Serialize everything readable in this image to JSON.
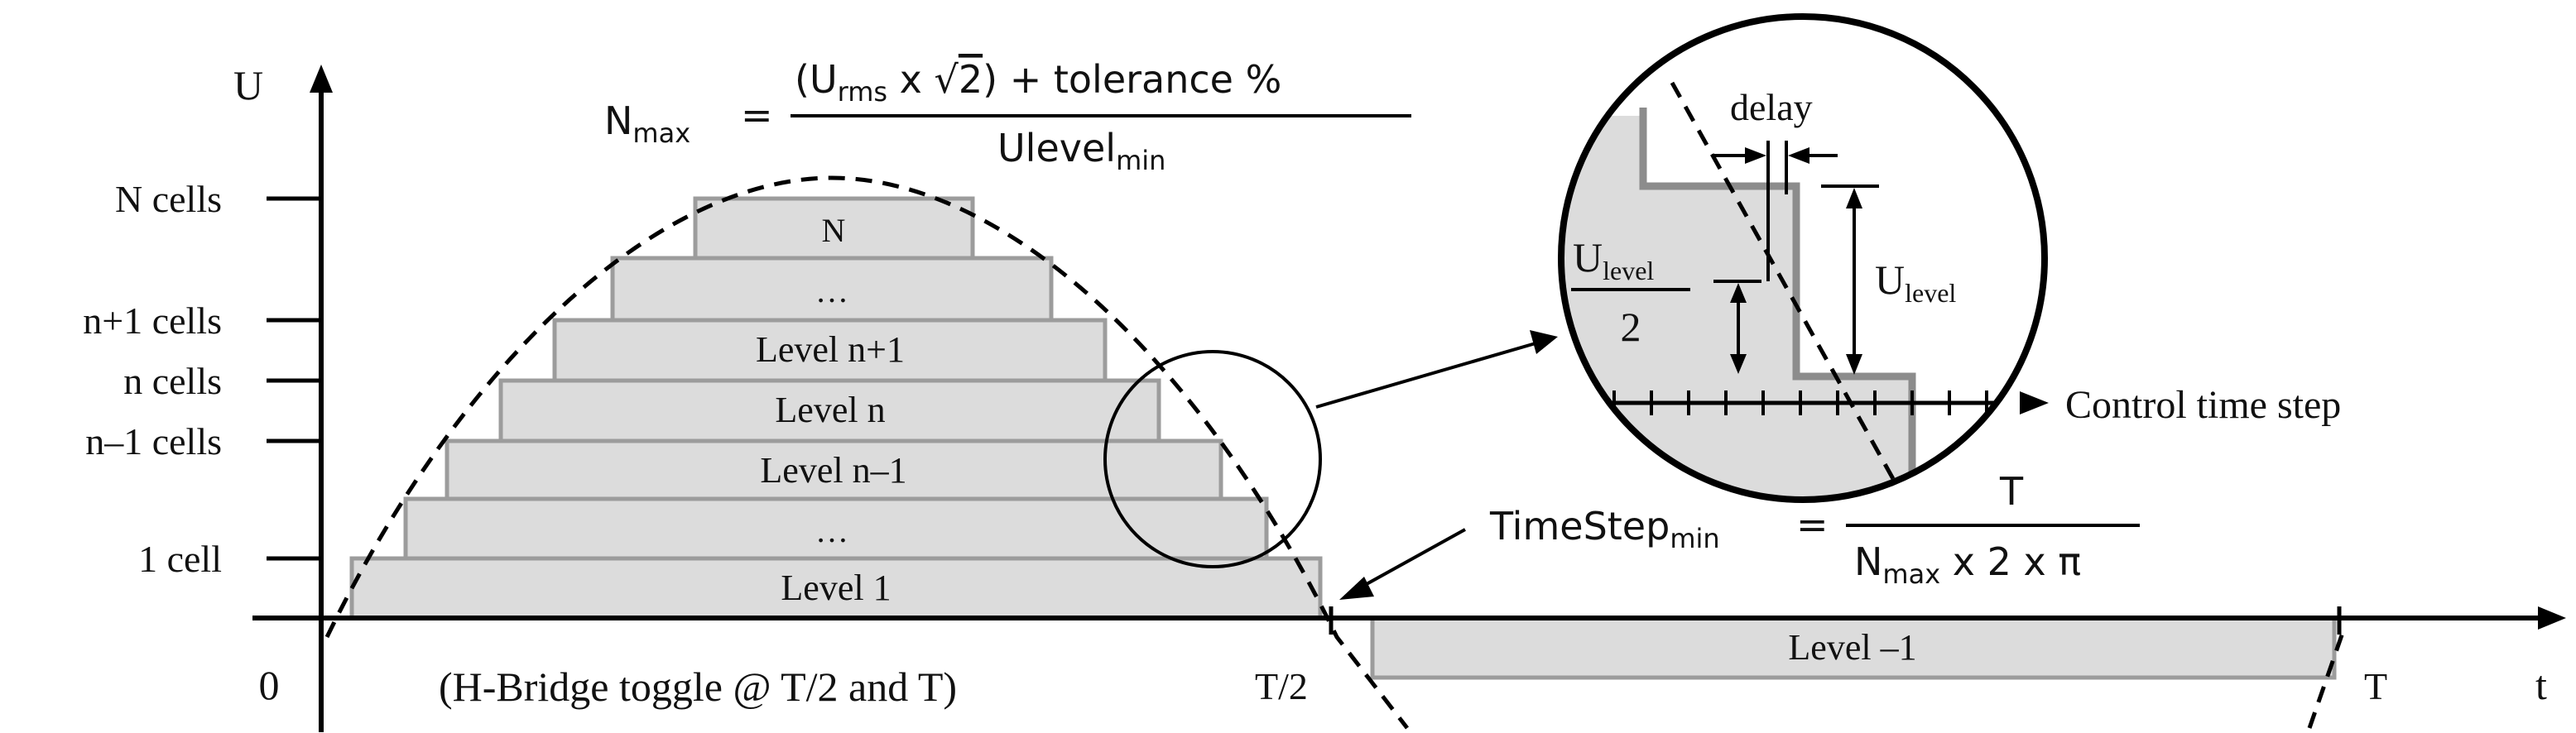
{
  "axes": {
    "y_label": "U",
    "x_label": "t",
    "origin_label": "0",
    "half_period_label": "T/2",
    "period_label": "T"
  },
  "y_ticks": [
    "N cells",
    "n+1 cells",
    "n cells",
    "n–1 cells",
    "1 cell"
  ],
  "levels": {
    "top": "N",
    "upper_ellipsis": "…",
    "n_plus_1": "Level n+1",
    "n": "Level n",
    "n_minus_1": "Level n–1",
    "lower_ellipsis": "…",
    "one": "Level 1",
    "negative": "Level –1"
  },
  "bridge_note": "(H-Bridge toggle @ T/2 and T)",
  "nmax_formula": {
    "lhs_base": "N",
    "lhs_sub": "max",
    "equals": "=",
    "numerator_open": "(U",
    "numerator_sub": "rms",
    "numerator_times": " x ",
    "sqrt_symbol": "√",
    "sqrt_arg": "2",
    "numerator_rest": ") + tolerance %",
    "denominator_base": "Ulevel",
    "denominator_sub": "min"
  },
  "timestep_formula": {
    "lhs_base": "TimeStep",
    "lhs_sub": "min",
    "equals": "=",
    "numerator": "T",
    "denominator_base": "N",
    "denominator_sub": "max",
    "denominator_rest": " x 2 x π"
  },
  "zoom": {
    "delay_label": "delay",
    "half_level_base": "U",
    "half_level_sub": "level",
    "half_level_denominator": "2",
    "level_base": "U",
    "level_sub": "level",
    "time_axis_label": "Control time step"
  }
}
